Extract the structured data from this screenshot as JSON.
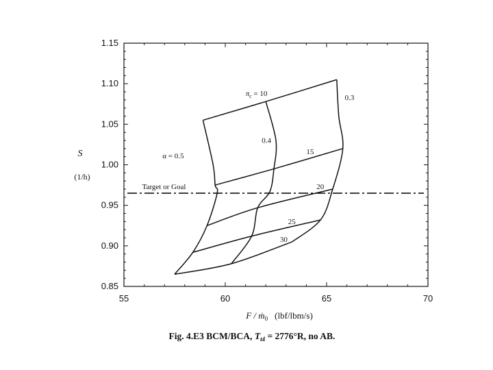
{
  "chart_data": {
    "type": "line",
    "xlabel_symbol": "F / ṁ",
    "xlabel_subscript": "0",
    "xlabel_units": "(lbf/lbm/s)",
    "ylabel_symbol": "S",
    "ylabel_units": "(1/h)",
    "xlim": [
      55,
      70
    ],
    "ylim": [
      0.85,
      1.15
    ],
    "x_ticks": [
      "55",
      "60",
      "65",
      "70"
    ],
    "y_ticks": [
      "0.85",
      "0.90",
      "0.95",
      "1.00",
      "1.05",
      "1.10",
      "1.15"
    ],
    "target_line": {
      "label": "Target or Goal",
      "y": 0.965
    },
    "alpha_curves": [
      {
        "label": "α = 0.5",
        "points": [
          [
            58.9,
            1.055
          ],
          [
            59.4,
            1.0
          ],
          [
            59.5,
            0.975
          ],
          [
            59.6,
            0.965
          ],
          [
            59.1,
            0.925
          ],
          [
            58.4,
            0.892
          ],
          [
            57.5,
            0.865
          ]
        ]
      },
      {
        "label": "0.4",
        "points": [
          [
            62.0,
            1.078
          ],
          [
            62.5,
            1.03
          ],
          [
            62.4,
            0.995
          ],
          [
            62.2,
            0.967
          ],
          [
            61.6,
            0.947
          ],
          [
            61.3,
            0.912
          ],
          [
            60.3,
            0.878
          ]
        ]
      },
      {
        "label": "0.3",
        "points": [
          [
            65.5,
            1.105
          ],
          [
            65.6,
            1.06
          ],
          [
            65.8,
            1.02
          ],
          [
            65.3,
            0.97
          ],
          [
            64.7,
            0.932
          ],
          [
            63.3,
            0.905
          ]
        ]
      }
    ],
    "pi_curves": [
      {
        "label": "π_c = 10",
        "points": [
          [
            58.9,
            1.055
          ],
          [
            62.0,
            1.078
          ],
          [
            65.5,
            1.105
          ]
        ]
      },
      {
        "label": "15",
        "points": [
          [
            59.5,
            0.975
          ],
          [
            62.4,
            0.995
          ],
          [
            65.8,
            1.02
          ]
        ]
      },
      {
        "label": "20",
        "points": [
          [
            59.1,
            0.925
          ],
          [
            61.6,
            0.947
          ],
          [
            65.3,
            0.97
          ]
        ]
      },
      {
        "label": "25",
        "points": [
          [
            58.4,
            0.892
          ],
          [
            61.3,
            0.912
          ],
          [
            64.7,
            0.932
          ]
        ]
      },
      {
        "label": "30",
        "points": [
          [
            57.5,
            0.865
          ],
          [
            60.3,
            0.878
          ],
          [
            63.3,
            0.905
          ]
        ]
      }
    ],
    "caption": {
      "prefix": "Fig. 4.E3    BCM/BCA, ",
      "t_symbol": "T",
      "t_subscript": "t4",
      "suffix": " = 2776°R, no AB."
    }
  }
}
